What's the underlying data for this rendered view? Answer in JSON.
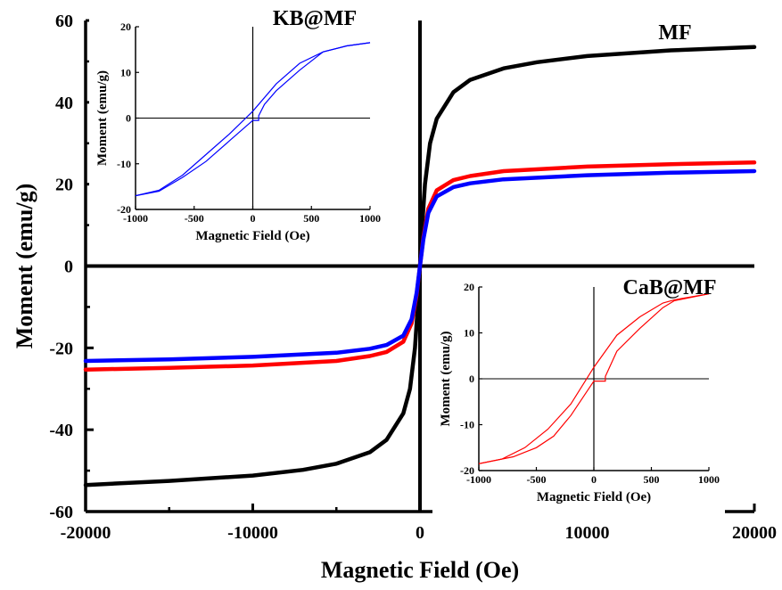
{
  "chart_data": [
    {
      "type": "line",
      "xlabel": "Magnetic Field (Oe)",
      "ylabel": "Moment (emu/g)",
      "xlim": [
        -20000,
        20000
      ],
      "ylim": [
        -60,
        60
      ],
      "xticks": [
        "-20000",
        "-10000",
        "0",
        "10000",
        "20000"
      ],
      "yticks": [
        "-60",
        "-40",
        "-20",
        "0",
        "20",
        "40",
        "60"
      ],
      "grid": false,
      "annotations": [
        "MF",
        "KB@MF",
        "CaB@MF"
      ],
      "series": [
        {
          "name": "MF",
          "color": "#000000",
          "points": [
            [
              -20000,
              -53.5
            ],
            [
              -15000,
              -52.5
            ],
            [
              -10000,
              -51.2
            ],
            [
              -7000,
              -49.8
            ],
            [
              -5000,
              -48.3
            ],
            [
              -3000,
              -45.5
            ],
            [
              -2000,
              -42.5
            ],
            [
              -1000,
              -36
            ],
            [
              -600,
              -30
            ],
            [
              -300,
              -20
            ],
            [
              -100,
              -8
            ],
            [
              0,
              0
            ],
            [
              100,
              8
            ],
            [
              300,
              20
            ],
            [
              600,
              30
            ],
            [
              1000,
              36
            ],
            [
              2000,
              42.5
            ],
            [
              3000,
              45.5
            ],
            [
              5000,
              48.3
            ],
            [
              7000,
              49.8
            ],
            [
              10000,
              51.3
            ],
            [
              15000,
              52.7
            ],
            [
              20000,
              53.5
            ]
          ]
        },
        {
          "name": "CaB@MF",
          "color": "#ff0000",
          "points": [
            [
              -20000,
              -25.3
            ],
            [
              -15000,
              -24.9
            ],
            [
              -10000,
              -24.3
            ],
            [
              -5000,
              -23.2
            ],
            [
              -3000,
              -22
            ],
            [
              -2000,
              -21
            ],
            [
              -1000,
              -18.5
            ],
            [
              -500,
              -14
            ],
            [
              -200,
              -7
            ],
            [
              0,
              0
            ],
            [
              200,
              7
            ],
            [
              500,
              14
            ],
            [
              1000,
              18.5
            ],
            [
              2000,
              21
            ],
            [
              3000,
              22
            ],
            [
              5000,
              23.2
            ],
            [
              10000,
              24.3
            ],
            [
              15000,
              24.9
            ],
            [
              20000,
              25.3
            ]
          ]
        },
        {
          "name": "KB@MF",
          "color": "#0000ff",
          "points": [
            [
              -20000,
              -23.2
            ],
            [
              -15000,
              -22.8
            ],
            [
              -10000,
              -22.2
            ],
            [
              -5000,
              -21.2
            ],
            [
              -3000,
              -20.2
            ],
            [
              -2000,
              -19.3
            ],
            [
              -1000,
              -17
            ],
            [
              -500,
              -13
            ],
            [
              -200,
              -6.5
            ],
            [
              0,
              0
            ],
            [
              200,
              6.5
            ],
            [
              500,
              13
            ],
            [
              1000,
              17
            ],
            [
              2000,
              19.3
            ],
            [
              3000,
              20.2
            ],
            [
              5000,
              21.2
            ],
            [
              10000,
              22.2
            ],
            [
              15000,
              22.8
            ],
            [
              20000,
              23.2
            ]
          ]
        }
      ]
    },
    {
      "type": "line",
      "title": "KB@MF",
      "xlabel": "Magnetic Field (Oe)",
      "ylabel": "Moment (emu/g)",
      "xlim": [
        -1000,
        1000
      ],
      "ylim": [
        -20,
        20
      ],
      "xticks": [
        "-1000",
        "-500",
        "0",
        "500",
        "1000"
      ],
      "yticks": [
        "-20",
        "-10",
        "0",
        "10",
        "20"
      ],
      "color": "#0000ff",
      "branch_up": [
        [
          -1000,
          -17
        ],
        [
          -800,
          -16
        ],
        [
          -600,
          -13
        ],
        [
          -400,
          -9.5
        ],
        [
          -200,
          -5
        ],
        [
          0,
          -0.5
        ],
        [
          50,
          -0.5
        ],
        [
          50,
          0.5
        ],
        [
          100,
          3
        ],
        [
          200,
          6
        ],
        [
          400,
          10.5
        ],
        [
          600,
          14.5
        ],
        [
          800,
          15.8
        ],
        [
          1000,
          16.5
        ]
      ],
      "branch_down": [
        [
          1000,
          16.5
        ],
        [
          800,
          15.8
        ],
        [
          600,
          14.5
        ],
        [
          400,
          12
        ],
        [
          200,
          7.5
        ],
        [
          0,
          1.5
        ],
        [
          -200,
          -3.5
        ],
        [
          -400,
          -8
        ],
        [
          -600,
          -12.5
        ],
        [
          -800,
          -15.8
        ],
        [
          -1000,
          -17
        ]
      ]
    },
    {
      "type": "line",
      "title": "CaB@MF",
      "xlabel": "Magnetic Field (Oe)",
      "ylabel": "Moment (emu/g)",
      "xlim": [
        -1000,
        1000
      ],
      "ylim": [
        -20,
        20
      ],
      "xticks": [
        "-1000",
        "-500",
        "0",
        "500",
        "1000"
      ],
      "yticks": [
        "-20",
        "-10",
        "0",
        "10",
        "20"
      ],
      "color": "#ff0000",
      "branch_up": [
        [
          -1000,
          -18.5
        ],
        [
          -700,
          -17
        ],
        [
          -500,
          -15
        ],
        [
          -350,
          -12.5
        ],
        [
          -200,
          -8
        ],
        [
          0,
          -0.5
        ],
        [
          100,
          -0.5
        ],
        [
          100,
          0.5
        ],
        [
          200,
          6
        ],
        [
          400,
          11
        ],
        [
          600,
          15.5
        ],
        [
          700,
          17
        ],
        [
          1000,
          18.5
        ]
      ],
      "branch_down": [
        [
          1000,
          18.5
        ],
        [
          700,
          17.2
        ],
        [
          600,
          16.5
        ],
        [
          400,
          13.5
        ],
        [
          200,
          9.5
        ],
        [
          0,
          2.5
        ],
        [
          -200,
          -5.5
        ],
        [
          -400,
          -11
        ],
        [
          -600,
          -15
        ],
        [
          -800,
          -17.5
        ],
        [
          -1000,
          -18.5
        ]
      ]
    }
  ]
}
